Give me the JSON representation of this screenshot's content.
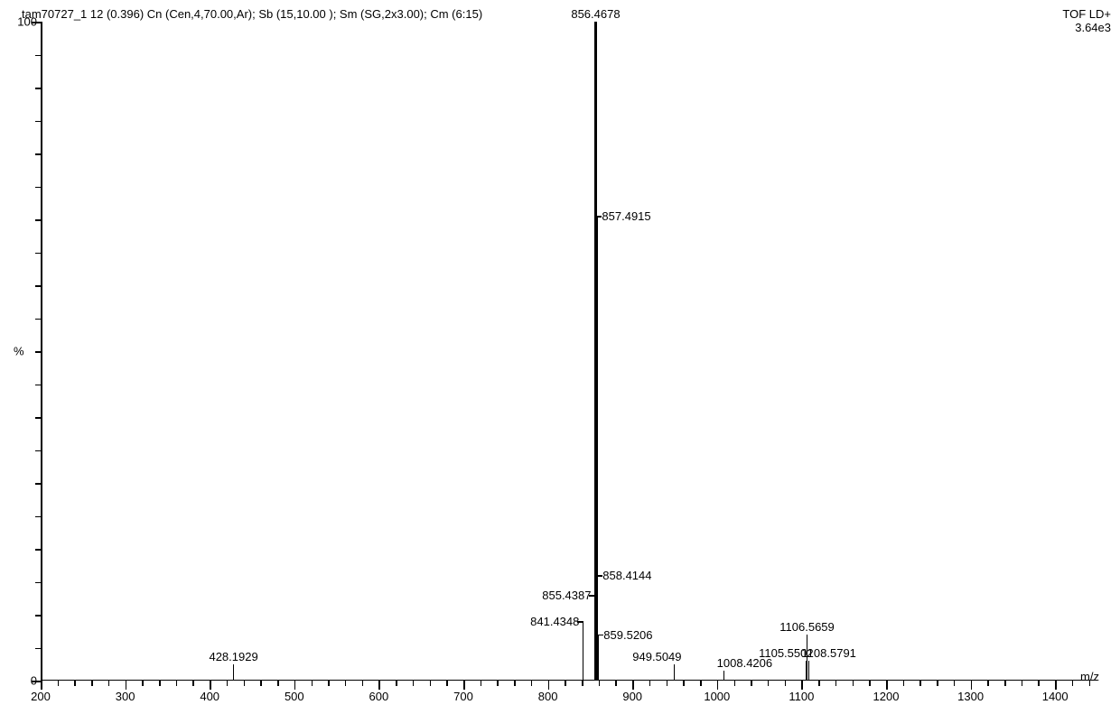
{
  "header": {
    "left": "tam70727_1 12 (0.396) Cn (Cen,4,70.00,Ar); Sb (15,10.00 ); Sm (SG,2x3.00); Cm (6:15)",
    "right_top": "TOF LD+",
    "right_bottom": "3.64e3"
  },
  "axes": {
    "xlabel": "m/z",
    "ylabel": "%",
    "xlim": [
      200,
      1450
    ],
    "ylim": [
      0,
      100
    ],
    "x_major_ticks": [
      200,
      300,
      400,
      500,
      600,
      700,
      800,
      900,
      1000,
      1100,
      1200,
      1300,
      1400
    ],
    "x_minor_step": 20,
    "y_major_ticks": [
      0,
      100
    ],
    "y_minor_step": 5,
    "colors": {
      "axis": "#000000",
      "background": "#ffffff",
      "text": "#000000",
      "peak": "#000000"
    },
    "fontsize": 13
  },
  "spectrum": {
    "type": "mass_spectrum",
    "peaks": [
      {
        "mz": 428.1929,
        "intensity": 2.5,
        "label": "428.1929",
        "label_pos": "above"
      },
      {
        "mz": 841.4348,
        "intensity": 9.0,
        "label": "841.4348",
        "label_pos": "left"
      },
      {
        "mz": 855.4387,
        "intensity": 13.0,
        "label": "855.4387",
        "label_pos": "left"
      },
      {
        "mz": 856.4678,
        "intensity": 100.0,
        "label": "856.4678",
        "label_pos": "above",
        "wide": true
      },
      {
        "mz": 857.4915,
        "intensity": 70.5,
        "label": "857.4915",
        "label_pos": "right",
        "wide": true
      },
      {
        "mz": 858.4144,
        "intensity": 16.0,
        "label": "858.4144",
        "label_pos": "right"
      },
      {
        "mz": 859.5206,
        "intensity": 7.0,
        "label": "859.5206",
        "label_pos": "right"
      },
      {
        "mz": 949.5049,
        "intensity": 2.5,
        "label": "949.5049",
        "label_pos": "above-left"
      },
      {
        "mz": 1008.4206,
        "intensity": 1.5,
        "label": "1008.4206",
        "label_pos": "above-right"
      },
      {
        "mz": 1105.5502,
        "intensity": 3.0,
        "label": "1105.5502",
        "label_pos": "above-left"
      },
      {
        "mz": 1106.5659,
        "intensity": 7.0,
        "label": "1106.5659",
        "label_pos": "above"
      },
      {
        "mz": 1108.5791,
        "intensity": 3.0,
        "label": "1108.5791",
        "label_pos": "above-right"
      }
    ]
  }
}
